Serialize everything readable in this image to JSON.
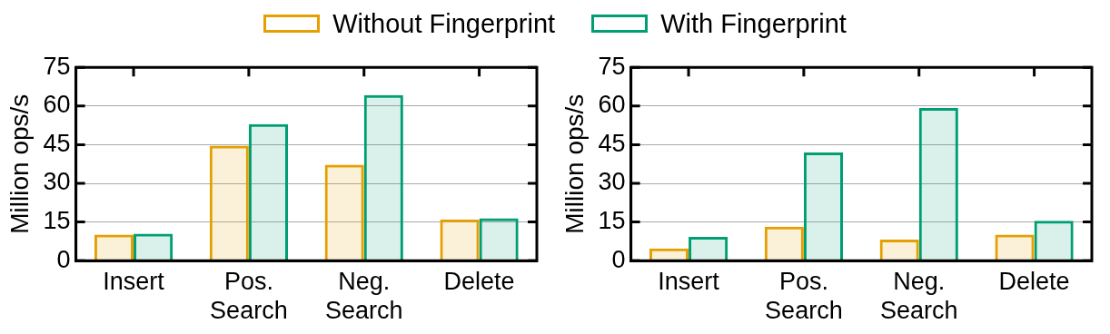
{
  "chart_data": [
    {
      "type": "bar",
      "ylabel": "Million ops/s",
      "categories": [
        "Insert",
        "Pos.\nSearch",
        "Neg.\nSearch",
        "Delete"
      ],
      "ylim": [
        0,
        75
      ],
      "yticks": [
        0,
        15,
        30,
        45,
        60,
        75
      ],
      "grid": "y",
      "legend": "top",
      "series": [
        {
          "name": "Without Fingerprint",
          "color": "#e69f00",
          "values": [
            10.1,
            44.6,
            37.2,
            16
          ]
        },
        {
          "name": "With Fingerprint",
          "color": "#009e73",
          "values": [
            10.5,
            53,
            64.2,
            16.4
          ]
        }
      ]
    },
    {
      "type": "bar",
      "ylabel": "Million ops/s",
      "categories": [
        "Insert",
        "Pos.\nSearch",
        "Neg.\nSearch",
        "Delete"
      ],
      "ylim": [
        0,
        75
      ],
      "yticks": [
        0,
        15,
        30,
        45,
        60,
        75
      ],
      "grid": "y",
      "series": [
        {
          "color": "#e69f00",
          "values": [
            4.7,
            13.2,
            8.2,
            10.1
          ]
        },
        {
          "color": "#009e73",
          "values": [
            9.2,
            42,
            59.2,
            15.5
          ]
        }
      ]
    }
  ]
}
